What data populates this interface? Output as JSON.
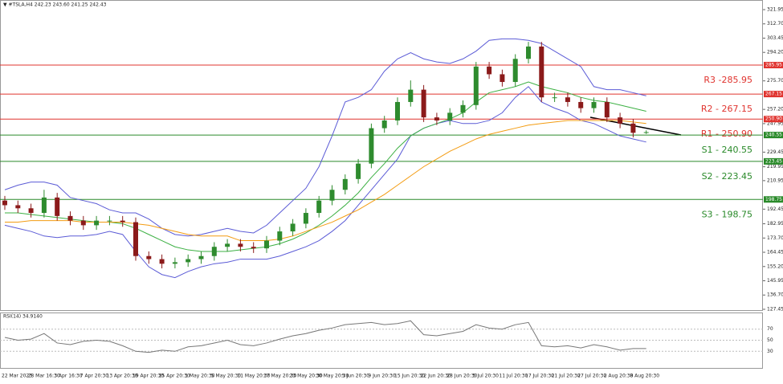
{
  "chart_data": {
    "type": "candlestick",
    "title": "▼ #TSLA,H4  242.23 243.60 241.25 242.43",
    "categories": [
      "22 Mar 2023",
      null,
      "28 Mar 16:30",
      null,
      "3 Apr 16:30",
      null,
      "7 Apr 20:30",
      null,
      "13 Apr 20:30",
      null,
      "19 Apr 20:30",
      null,
      "25 Apr 20:30",
      null,
      "1 May 20:30",
      null,
      "5 May 20:30",
      null,
      "11 May 20:30",
      null,
      "17 May 20:30",
      null,
      "23 May 20:30",
      null,
      "30 May 20:30",
      null,
      "5 Jun 20:30",
      null,
      "9 Jun 20:30",
      null,
      "15 Jun 20:30",
      null,
      "22 Jun 20:30",
      null,
      "28 Jun 20:30",
      null,
      "5 Jul 20:30",
      null,
      "11 Jul 20:30",
      null,
      "17 Jul 20:30",
      null,
      "21 Jul 20:30",
      null,
      "27 Jul 20:30",
      null,
      "2 Aug 20:30",
      null,
      "8 Aug 20:30",
      null
    ],
    "open": [
      198,
      195,
      193,
      190,
      200,
      188,
      185,
      182,
      185,
      185,
      184,
      162,
      160,
      157,
      158,
      160,
      162,
      168,
      170,
      168,
      167,
      172,
      178,
      183,
      190,
      198,
      205,
      212,
      222,
      245,
      250,
      262,
      270,
      252,
      250,
      255,
      260,
      285,
      280,
      275,
      290,
      298,
      265,
      265,
      262,
      258,
      262,
      252,
      248,
      242
    ],
    "high": [
      201,
      198,
      196,
      205,
      203,
      191,
      188,
      188,
      188,
      188,
      187,
      165,
      163,
      161,
      163,
      165,
      171,
      173,
      173,
      171,
      175,
      181,
      186,
      193,
      201,
      208,
      215,
      225,
      248,
      253,
      265,
      276,
      273,
      255,
      258,
      263,
      288,
      288,
      283,
      293,
      301,
      301,
      268,
      268,
      265,
      265,
      265,
      255,
      251,
      243.6
    ],
    "low": [
      192,
      190,
      187,
      187,
      185,
      182,
      179,
      179,
      182,
      181,
      159,
      157,
      154,
      154,
      155,
      157,
      159,
      165,
      165,
      164,
      164,
      169,
      175,
      180,
      187,
      195,
      202,
      209,
      219,
      242,
      247,
      259,
      249,
      247,
      247,
      252,
      257,
      277,
      272,
      272,
      287,
      262,
      262,
      259,
      255,
      255,
      249,
      245,
      239,
      241.25
    ],
    "close": [
      195,
      193,
      190,
      200,
      188,
      185,
      182,
      185,
      185,
      184,
      162,
      160,
      157,
      158,
      160,
      162,
      168,
      170,
      168,
      167,
      172,
      178,
      183,
      190,
      198,
      205,
      212,
      222,
      245,
      250,
      262,
      270,
      252,
      250,
      255,
      260,
      285,
      280,
      275,
      290,
      298,
      265,
      265,
      262,
      258,
      262,
      252,
      248,
      242,
      242.43
    ],
    "up_color": "#2e8b2e",
    "down_color": "#8b1a1a",
    "series": [
      {
        "color": "#5b5bd6",
        "values": [
          205,
          208,
          210,
          210,
          208,
          200,
          198,
          196,
          192,
          190,
          190,
          186,
          180,
          176,
          175,
          176,
          178,
          180,
          178,
          177,
          182,
          190,
          198,
          206,
          220,
          240,
          262,
          265,
          270,
          282,
          290,
          294,
          290,
          288,
          287,
          290,
          295,
          302,
          303,
          303,
          302,
          300,
          295,
          290,
          285,
          272,
          270,
          270,
          268,
          266
        ]
      },
      {
        "color": "#5b5bd6",
        "values": [
          182,
          180,
          178,
          175,
          174,
          175,
          175,
          176,
          178,
          176,
          165,
          155,
          150,
          148,
          152,
          155,
          157,
          158,
          160,
          160,
          160,
          162,
          165,
          168,
          172,
          178,
          185,
          195,
          205,
          215,
          225,
          240,
          245,
          248,
          250,
          248,
          248,
          250,
          255,
          265,
          272,
          262,
          258,
          255,
          250,
          248,
          244,
          240,
          238,
          236
        ]
      },
      {
        "color": "#3cb043",
        "values": [
          190,
          190,
          189,
          188,
          187,
          186,
          185,
          184,
          184,
          183,
          180,
          176,
          172,
          168,
          166,
          165,
          165,
          165,
          166,
          167,
          168,
          170,
          173,
          177,
          182,
          188,
          195,
          203,
          213,
          222,
          232,
          240,
          245,
          248,
          251,
          255,
          262,
          268,
          270,
          272,
          275,
          272,
          270,
          268,
          265,
          263,
          262,
          260,
          258,
          256
        ]
      },
      {
        "color": "#f39c12",
        "values": [
          184,
          184,
          185,
          185,
          185,
          185,
          184,
          184,
          184,
          184,
          183,
          182,
          180,
          178,
          176,
          175,
          175,
          175,
          172,
          172,
          172,
          173,
          175,
          178,
          181,
          184,
          188,
          192,
          197,
          202,
          208,
          214,
          220,
          225,
          230,
          234,
          238,
          241,
          243,
          245,
          247,
          248,
          249,
          250,
          250,
          250,
          250,
          250,
          249,
          248
        ]
      }
    ],
    "ylim": [
      126.4,
      328.2
    ],
    "yticks": [
      321.95,
      {
        "value": 312.7,
        "label": "312.70"
      },
      303.45,
      {
        "value": 294.2,
        "label": "294.20"
      },
      {
        "value": 275.7,
        "label": "275.70"
      },
      {
        "value": 257.2,
        "label": "257.20"
      },
      247.95,
      229.45,
      219.95,
      210.95,
      192.45,
      182.95,
      {
        "value": 173.7,
        "label": "173.70"
      },
      164.45,
      {
        "value": 155.2,
        "label": "155.20"
      },
      145.95,
      {
        "value": 136.7,
        "label": "136.70"
      },
      127.45
    ],
    "levels": [
      {
        "text": "R3 -285.95",
        "value": 285.95,
        "tag": "285.95",
        "color": "#e0342f"
      },
      {
        "text": "R2 - 267.15",
        "value": 267.15,
        "tag": "267.15",
        "color": "#e0342f"
      },
      {
        "text": "R1 - 250.90",
        "value": 250.9,
        "tag": "250.90",
        "color": "#e0342f"
      },
      {
        "text": "S1 - 240.55",
        "value": 240.55,
        "tag": "240.55",
        "color": "#2a8a2a"
      },
      {
        "text": "S2 - 223.45",
        "value": 223.45,
        "tag": "223.45",
        "color": "#2a8a2a"
      },
      {
        "text": "S3 - 198.75",
        "value": 198.75,
        "tag": "198.75",
        "color": "#2a8a2a"
      }
    ],
    "rsi": {
      "label": "RSI(14) 34.9140",
      "color": "#777",
      "ylim": [
        0,
        100
      ],
      "yticks": [
        70,
        50,
        30
      ],
      "values": [
        55,
        50,
        52,
        62,
        45,
        42,
        48,
        50,
        48,
        40,
        30,
        28,
        32,
        30,
        38,
        40,
        45,
        50,
        42,
        40,
        45,
        52,
        58,
        62,
        68,
        72,
        78,
        80,
        82,
        78,
        80,
        85,
        60,
        58,
        62,
        66,
        78,
        72,
        70,
        78,
        82,
        40,
        38,
        40,
        36,
        42,
        38,
        32,
        35,
        34.914
      ]
    }
  }
}
